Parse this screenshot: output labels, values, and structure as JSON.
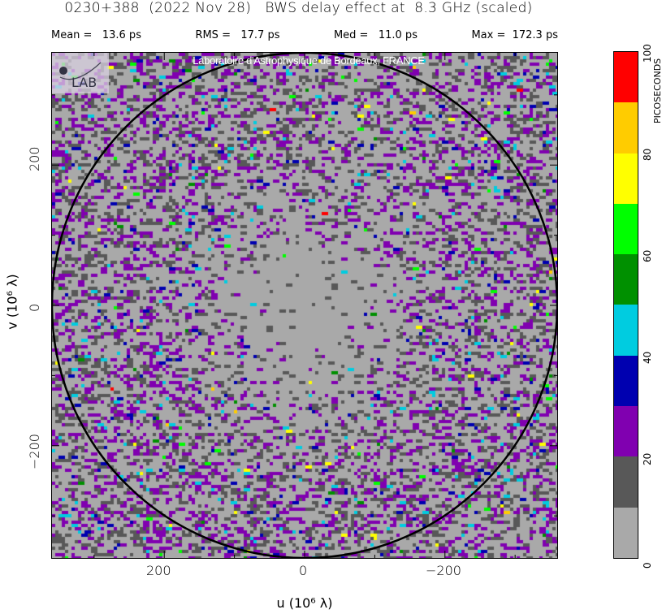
{
  "title": "0230+388  (2022 Nov 28)   BWS delay effect at  8.3 GHz (scaled)",
  "stats": [
    {
      "label": "Mean =",
      "value": "13.6 ps"
    },
    {
      "label": "RMS =",
      "value": "17.7 ps"
    },
    {
      "label": "Med =",
      "value": "11.0 ps"
    },
    {
      "label": "Max =",
      "value": "172.3 ps"
    }
  ],
  "watermark": "Laboratoire d'Astrophysique de Bordeaux, FRANCE",
  "logo_text": "LAB",
  "chart_data": {
    "type": "heatmap",
    "xlabel": "u  (10⁶ λ)",
    "ylabel": "v  (10⁶ λ)",
    "x_ticks": [
      "200",
      "0",
      "−200"
    ],
    "y_ticks": [
      "200",
      "0",
      "−200"
    ],
    "xlim": [
      360,
      -360
    ],
    "ylim": [
      -360,
      360
    ],
    "x_reversed": true,
    "circle_radius": 360,
    "colorbar": {
      "label": "PICOSECONDS",
      "ticks": [
        "0",
        "20",
        "40",
        "60",
        "80",
        "100"
      ],
      "range": [
        0,
        100
      ],
      "levels": [
        {
          "min": 0,
          "max": 10,
          "color": "#a9a9a9"
        },
        {
          "min": 10,
          "max": 20,
          "color": "#585858"
        },
        {
          "min": 20,
          "max": 30,
          "color": "#8000b0"
        },
        {
          "min": 30,
          "max": 40,
          "color": "#0000b0"
        },
        {
          "min": 40,
          "max": 50,
          "color": "#00cce0"
        },
        {
          "min": 50,
          "max": 60,
          "color": "#009000"
        },
        {
          "min": 60,
          "max": 70,
          "color": "#00ff00"
        },
        {
          "min": 70,
          "max": 80,
          "color": "#ffff00"
        },
        {
          "min": 80,
          "max": 90,
          "color": "#ffcc00"
        },
        {
          "min": 90,
          "max": 100,
          "color": "#ff0000"
        }
      ]
    }
  }
}
